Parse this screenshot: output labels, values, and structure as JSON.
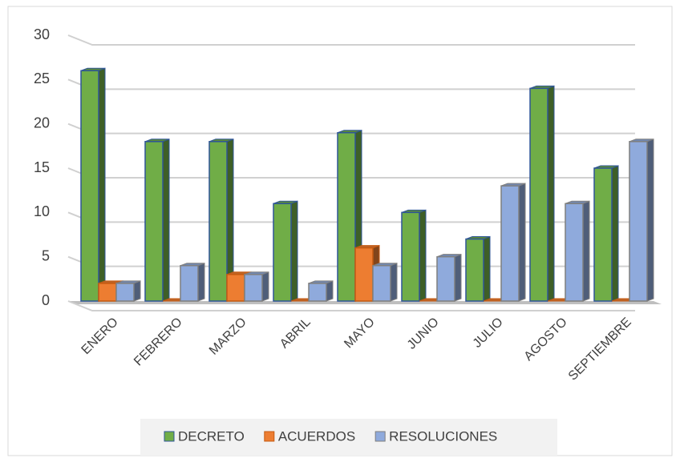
{
  "chart_data": {
    "type": "bar3d",
    "categories": [
      "ENERO",
      "FEBRERO",
      "MARZO",
      "ABRIL",
      "MAYO",
      "JUNIO",
      "JULIO",
      "AGOSTO",
      "SEPTIEMBRE"
    ],
    "series": [
      {
        "name": "DECRETO",
        "color": "#70ad47",
        "values": [
          26,
          18,
          18,
          11,
          19,
          10,
          7,
          24,
          15
        ]
      },
      {
        "name": "ACUERDOS",
        "color": "#ed7d31",
        "values": [
          2,
          0,
          3,
          0,
          6,
          0,
          0,
          0,
          0
        ]
      },
      {
        "name": "RESOLUCIONES",
        "color": "#8faadc",
        "values": [
          2,
          4,
          3,
          2,
          4,
          5,
          13,
          11,
          18
        ]
      }
    ],
    "ylim": [
      0,
      30
    ],
    "yticks": [
      0,
      5,
      10,
      15,
      20,
      25,
      30
    ],
    "grid": true,
    "legend": "bottom"
  }
}
